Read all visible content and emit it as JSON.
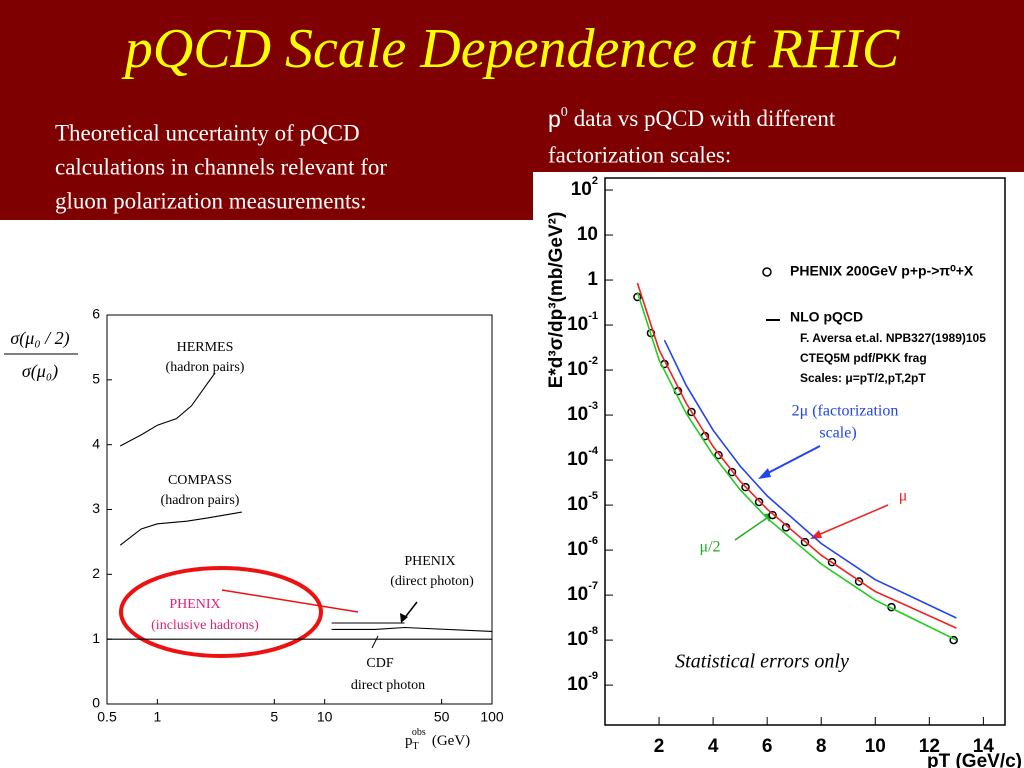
{
  "title": "pQCD Scale Dependence at RHIC",
  "left_text": [
    "Theoretical uncertainty of pQCD",
    "calculations in channels relevant for",
    "gluon polarization measurements:"
  ],
  "right_text": {
    "symbol": "p",
    "sup": "0",
    "line1": "data vs  pQCD with different",
    "line2": "factorization scales:"
  },
  "chart_data": [
    {
      "type": "line",
      "xlog": true,
      "xlim": [
        0.5,
        100
      ],
      "ylim": [
        0,
        6
      ],
      "xticks": [
        0.5,
        1,
        5,
        10,
        50,
        100
      ],
      "yticks": [
        0,
        1,
        2,
        3,
        4,
        5,
        6
      ],
      "ylabel": {
        "numerator": "σ(μ₀ / 2)",
        "denominator": "σ(μ₀)"
      },
      "xlabel": {
        "main": "p",
        "sub": "T",
        "sup": "obs",
        "unit": "(GeV)"
      },
      "hline": 1,
      "line_color": "#000000",
      "series": [
        {
          "x": [
            0.6,
            0.8,
            1,
            1.3,
            1.6,
            2,
            2.2
          ],
          "values": [
            3.98,
            4.15,
            4.3,
            4.4,
            4.6,
            4.95,
            5.1
          ]
        },
        {
          "x": [
            0.6,
            0.8,
            1,
            1.5,
            2,
            3.2
          ],
          "values": [
            2.45,
            2.7,
            2.78,
            2.82,
            2.87,
            2.96
          ]
        },
        {
          "x": [
            11,
            30
          ],
          "values": [
            1.25,
            1.25
          ]
        },
        {
          "x": [
            11,
            20,
            30,
            100
          ],
          "values": [
            1.15,
            1.15,
            1.18,
            1.12
          ]
        }
      ],
      "annotations": [
        {
          "text": "HERMES",
          "color": "#000000"
        },
        {
          "text": "(hadron pairs)",
          "color": "#000000"
        },
        {
          "text": "COMPASS",
          "color": "#000000"
        },
        {
          "text": "(hadron pairs)",
          "color": "#000000"
        },
        {
          "text": "PHENIX",
          "color": "#000000"
        },
        {
          "text": "(direct photon)",
          "color": "#000000"
        },
        {
          "text": "PHENIX",
          "color": "#e0207a"
        },
        {
          "text": "(inclusive hadrons)",
          "color": "#e0207a"
        },
        {
          "text": "CDF",
          "color": "#000000"
        },
        {
          "text": "direct photon",
          "color": "#000000"
        }
      ]
    },
    {
      "type": "line",
      "ylog": true,
      "xlim": [
        0,
        14.8
      ],
      "ylim": [
        1.3e-10,
        185
      ],
      "xticks": [
        2,
        4,
        6,
        8,
        10,
        12,
        14
      ],
      "yticks": [
        {
          "value": 100,
          "label": "10",
          "sup": "2"
        },
        10,
        1,
        {
          "value": 0.1,
          "label": "10",
          "sup": "-1"
        },
        {
          "value": 0.01,
          "label": "10",
          "sup": "-2"
        },
        {
          "value": 0.001,
          "label": "10",
          "sup": "-3"
        },
        {
          "value": 0.0001,
          "label": "10",
          "sup": "-4"
        },
        {
          "value": 1e-05,
          "label": "10",
          "sup": "-5"
        },
        {
          "value": 1e-06,
          "label": "10",
          "sup": "-6"
        },
        {
          "value": 1e-07,
          "label": "10",
          "sup": "-7"
        },
        {
          "value": 1e-08,
          "label": "10",
          "sup": "-8"
        },
        {
          "value": 1e-09,
          "label": "10",
          "sup": "-9"
        }
      ],
      "ylabel": "E*d³σ/dp³(mb/GeV²)",
      "xlabel": "pT (GeV/c)",
      "legend": [
        "PHENIX 200GeV p+p->π⁰+X",
        "NLO pQCD",
        "F. Aversa et.al. NPB327(1989)105",
        "CTEQ5M pdf/PKK frag",
        "Scales: μ=pT/2,pT,2pT"
      ],
      "series": [
        {
          "marker": "circle",
          "color": "#000000",
          "x": [
            1.2,
            1.7,
            2.2,
            2.7,
            3.2,
            3.7,
            4.2,
            4.7,
            5.2,
            5.7,
            6.2,
            6.7,
            7.4,
            8.4,
            9.4,
            10.6,
            12.9
          ],
          "values": [
            0.42,
            0.066,
            0.0136,
            0.0034,
            0.00117,
            0.00034,
            0.000129,
            5.4e-05,
            2.5e-05,
            1.17e-05,
            6e-06,
            3.2e-06,
            1.5e-06,
            5.4e-07,
            2e-07,
            5.4e-08,
            1e-08
          ]
        },
        {
          "color": "#22cc22",
          "x": [
            1.2,
            2,
            3,
            4,
            5,
            6,
            8,
            10,
            13
          ],
          "values": [
            0.54,
            0.0167,
            0.0011,
            0.00013,
            2.2e-05,
            5.1e-06,
            4.9e-07,
            7.7e-08,
            1e-08
          ]
        },
        {
          "color": "#ee2222",
          "x": [
            1.2,
            2,
            3,
            4,
            5,
            6,
            8,
            10,
            13
          ],
          "values": [
            0.86,
            0.028,
            0.00185,
            0.0002,
            3.4e-05,
            8.1e-06,
            7.7e-07,
            1.2e-07,
            1.85e-08
          ]
        },
        {
          "color": "#2244ee",
          "x": [
            2.2,
            3,
            4,
            5,
            6,
            8,
            10,
            13
          ],
          "values": [
            0.046,
            0.0046,
            0.00046,
            7.4e-05,
            1.6e-05,
            1.4e-06,
            2.2e-07,
            3.1e-08
          ]
        }
      ],
      "annotations": [
        {
          "text": "2μ (factorization",
          "color": "#2244ee"
        },
        {
          "text": "scale)",
          "color": "#2244ee"
        },
        {
          "text": "μ",
          "color": "#ee2222"
        },
        {
          "text": "μ/2",
          "color": "#22aa22"
        },
        {
          "text": "Statistical errors only",
          "color": "#000000"
        }
      ]
    }
  ]
}
